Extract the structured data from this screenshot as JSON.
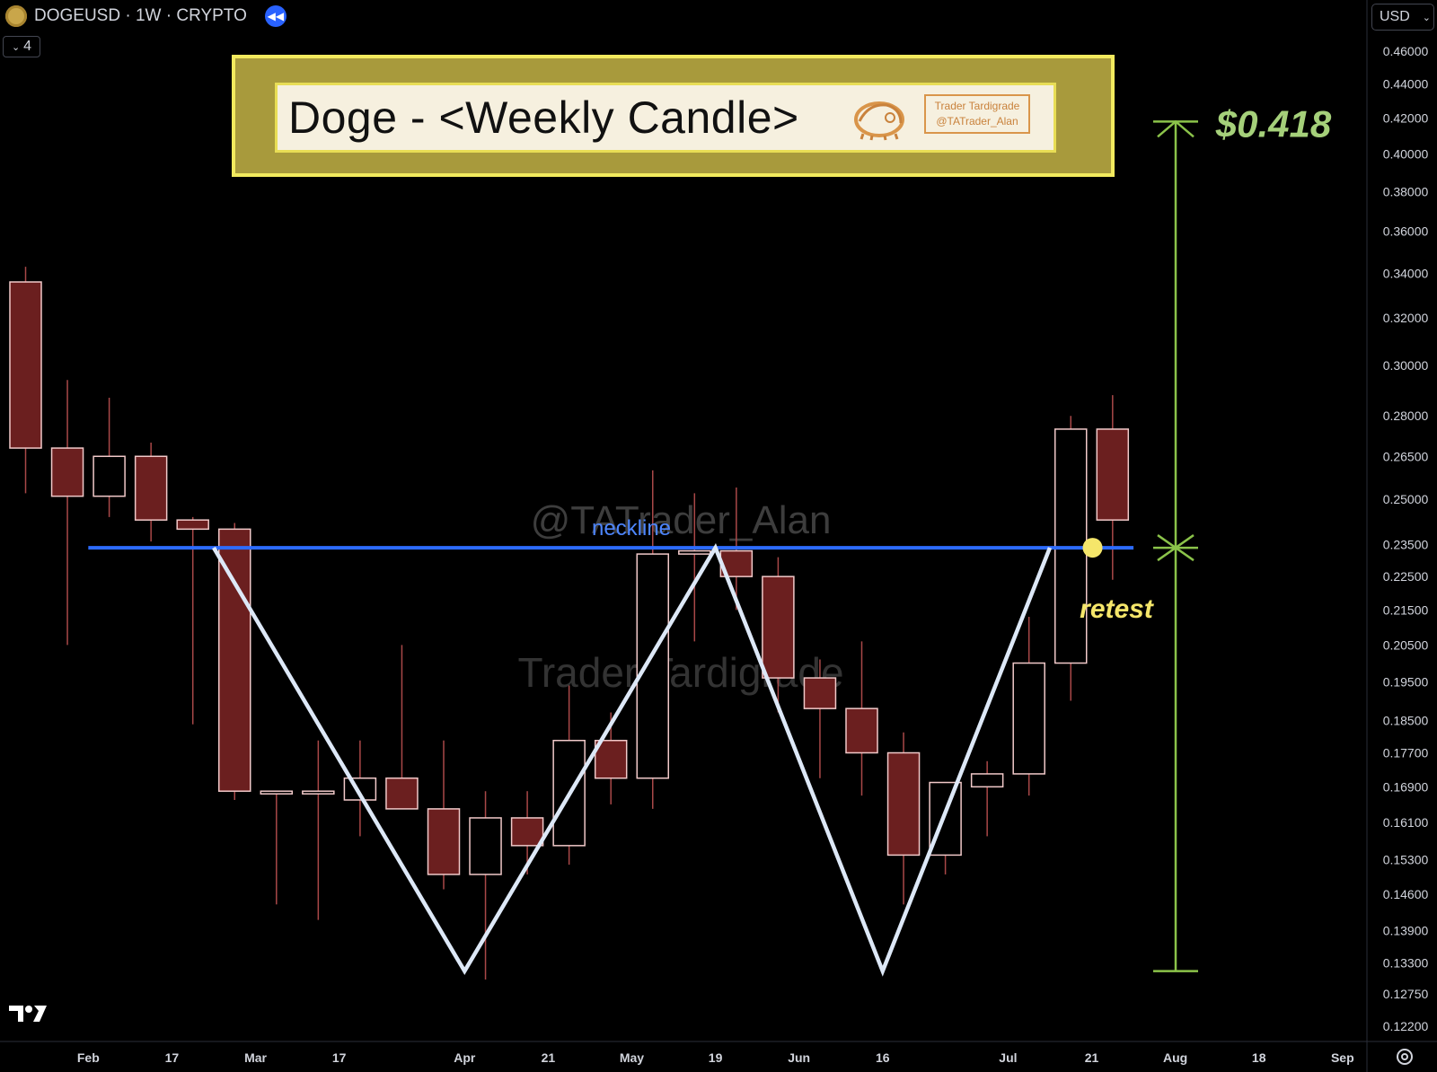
{
  "header": {
    "symbol": "DOGEUSD",
    "separator": "·",
    "interval": "1W",
    "market": "CRYPTO",
    "indicator_count": "4",
    "currency": "USD"
  },
  "banner": {
    "title": "Doge - <Weekly Candle>",
    "brand_line1": "Trader Tardigrade",
    "brand_line2": "@TATrader_Alan"
  },
  "watermarks": {
    "handle": "@TATrader_Alan",
    "brand": "Trader Tardigrade"
  },
  "colors": {
    "background": "#000000",
    "bear_fill": "#6b1f1f",
    "bull_fill": "#000000",
    "candle_border": "#f1c9c9",
    "neckline": "#2d6bff",
    "pattern": "#dde8f7",
    "target": "#8bc34a",
    "retest": "#f5e66a"
  },
  "chart_data": {
    "type": "candlestick",
    "title": "Doge - <Weekly Candle>",
    "scale": "log",
    "ylim": [
      0.1195,
      0.475
    ],
    "price_axis": [
      "0.46000",
      "0.44000",
      "0.42000",
      "0.40000",
      "0.38000",
      "0.36000",
      "0.34000",
      "0.32000",
      "0.30000",
      "0.28000",
      "0.26500",
      "0.25000",
      "0.23500",
      "0.22500",
      "0.21500",
      "0.20500",
      "0.19500",
      "0.18500",
      "0.17700",
      "0.16900",
      "0.16100",
      "0.15300",
      "0.14600",
      "0.13900",
      "0.13300",
      "0.12750",
      "0.12200"
    ],
    "time_axis": [
      {
        "label": "Feb",
        "index": 1.5
      },
      {
        "label": "17",
        "index": 3.5
      },
      {
        "label": "Mar",
        "index": 5.5
      },
      {
        "label": "17",
        "index": 7.5
      },
      {
        "label": "Apr",
        "index": 10.5
      },
      {
        "label": "21",
        "index": 12.5
      },
      {
        "label": "May",
        "index": 14.5
      },
      {
        "label": "19",
        "index": 16.5
      },
      {
        "label": "Jun",
        "index": 18.5
      },
      {
        "label": "16",
        "index": 20.5
      },
      {
        "label": "Jul",
        "index": 23.5
      },
      {
        "label": "21",
        "index": 25.5
      },
      {
        "label": "Aug",
        "index": 27.5
      },
      {
        "label": "18",
        "index": 29.5
      },
      {
        "label": "Sep",
        "index": 31.5
      }
    ],
    "candles": [
      {
        "o": 0.336,
        "h": 0.343,
        "l": 0.252,
        "c": 0.268
      },
      {
        "o": 0.268,
        "h": 0.294,
        "l": 0.205,
        "c": 0.251
      },
      {
        "o": 0.251,
        "h": 0.287,
        "l": 0.244,
        "c": 0.265
      },
      {
        "o": 0.265,
        "h": 0.27,
        "l": 0.236,
        "c": 0.243
      },
      {
        "o": 0.243,
        "h": 0.244,
        "l": 0.184,
        "c": 0.24
      },
      {
        "o": 0.24,
        "h": 0.242,
        "l": 0.166,
        "c": 0.168
      },
      {
        "o": 0.168,
        "h": 0.168,
        "l": 0.144,
        "c": 0.168
      },
      {
        "o": 0.168,
        "h": 0.18,
        "l": 0.141,
        "c": 0.168
      },
      {
        "o": 0.166,
        "h": 0.18,
        "l": 0.158,
        "c": 0.171
      },
      {
        "o": 0.171,
        "h": 0.205,
        "l": 0.166,
        "c": 0.164
      },
      {
        "o": 0.164,
        "h": 0.18,
        "l": 0.147,
        "c": 0.15
      },
      {
        "o": 0.15,
        "h": 0.168,
        "l": 0.13,
        "c": 0.162
      },
      {
        "o": 0.162,
        "h": 0.168,
        "l": 0.15,
        "c": 0.156
      },
      {
        "o": 0.156,
        "h": 0.194,
        "l": 0.152,
        "c": 0.18
      },
      {
        "o": 0.18,
        "h": 0.187,
        "l": 0.165,
        "c": 0.171
      },
      {
        "o": 0.171,
        "h": 0.26,
        "l": 0.164,
        "c": 0.232
      },
      {
        "o": 0.232,
        "h": 0.252,
        "l": 0.206,
        "c": 0.233
      },
      {
        "o": 0.233,
        "h": 0.254,
        "l": 0.215,
        "c": 0.225
      },
      {
        "o": 0.225,
        "h": 0.231,
        "l": 0.187,
        "c": 0.196
      },
      {
        "o": 0.196,
        "h": 0.201,
        "l": 0.171,
        "c": 0.188
      },
      {
        "o": 0.188,
        "h": 0.206,
        "l": 0.167,
        "c": 0.177
      },
      {
        "o": 0.177,
        "h": 0.182,
        "l": 0.144,
        "c": 0.154
      },
      {
        "o": 0.154,
        "h": 0.17,
        "l": 0.15,
        "c": 0.17
      },
      {
        "o": 0.169,
        "h": 0.175,
        "l": 0.158,
        "c": 0.172
      },
      {
        "o": 0.172,
        "h": 0.213,
        "l": 0.167,
        "c": 0.2
      },
      {
        "o": 0.2,
        "h": 0.28,
        "l": 0.19,
        "c": 0.275
      },
      {
        "o": 0.275,
        "h": 0.288,
        "l": 0.224,
        "c": 0.243
      }
    ],
    "neckline": {
      "price": 0.234,
      "label": "neckline",
      "from_index": 1.5,
      "to_index": 26.5
    },
    "pattern_path": [
      {
        "index": 4.5,
        "price": 0.234
      },
      {
        "index": 10.5,
        "price": 0.1315
      },
      {
        "index": 16.5,
        "price": 0.234
      },
      {
        "index": 20.5,
        "price": 0.1315
      },
      {
        "index": 24.5,
        "price": 0.234
      }
    ],
    "target": {
      "label": "$0.418",
      "from_price": 0.1315,
      "to_price": 0.418,
      "mid_price": 0.234
    },
    "retest": {
      "label": "retest",
      "index": 25.5,
      "price": 0.234
    }
  }
}
